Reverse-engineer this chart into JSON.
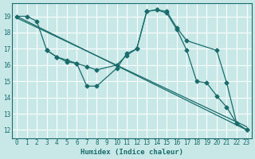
{
  "xlabel": "Humidex (Indice chaleur)",
  "bg_color": "#c8e8e8",
  "grid_color": "#ffffff",
  "line_color": "#1a6b6b",
  "xlim": [
    -0.5,
    23.5
  ],
  "ylim": [
    11.5,
    19.8
  ],
  "xticks": [
    0,
    1,
    2,
    3,
    4,
    5,
    6,
    7,
    8,
    9,
    10,
    11,
    12,
    13,
    14,
    15,
    16,
    17,
    18,
    19,
    20,
    21,
    22,
    23
  ],
  "yticks": [
    12,
    13,
    14,
    15,
    16,
    17,
    18,
    19
  ],
  "line1_x": [
    0,
    23
  ],
  "line1_y": [
    19.0,
    12.0
  ],
  "line2_x": [
    0,
    23
  ],
  "line2_y": [
    18.9,
    12.2
  ],
  "zigzag1_x": [
    0,
    1,
    2,
    3,
    4,
    5,
    6,
    7,
    8,
    10,
    11,
    12,
    13,
    14,
    15,
    16,
    17,
    20,
    21,
    22,
    23
  ],
  "zigzag1_y": [
    19.0,
    19.0,
    18.7,
    16.9,
    16.5,
    16.3,
    16.1,
    14.7,
    14.7,
    15.8,
    16.7,
    17.0,
    19.3,
    19.4,
    19.3,
    18.3,
    17.5,
    16.9,
    14.9,
    12.4,
    12.0
  ],
  "zigzag2_x": [
    3,
    4,
    5,
    6,
    7,
    8,
    10,
    11,
    12,
    13,
    14,
    15,
    16,
    17,
    18,
    19,
    20,
    21,
    22,
    23
  ],
  "zigzag2_y": [
    16.9,
    16.5,
    16.2,
    16.1,
    15.9,
    15.7,
    16.0,
    16.6,
    17.0,
    19.3,
    19.4,
    19.2,
    18.2,
    16.9,
    15.0,
    14.9,
    14.1,
    13.4,
    12.4,
    12.0
  ]
}
